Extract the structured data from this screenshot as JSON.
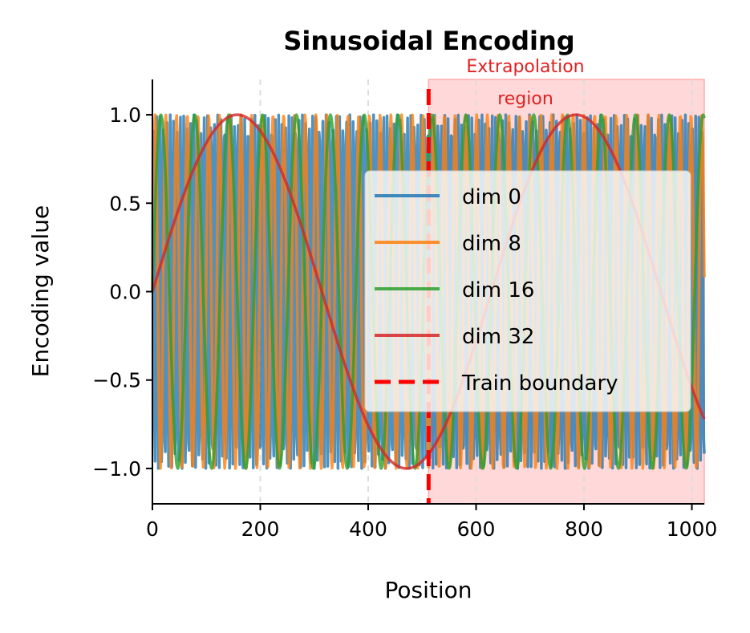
{
  "chart_data": {
    "type": "line",
    "title": "Sinusoidal Encoding",
    "xlabel": "Position",
    "ylabel": "Encoding value",
    "xlim": [
      0,
      1023
    ],
    "ylim": [
      -1.2,
      1.2
    ],
    "xticks": [
      0,
      200,
      400,
      600,
      800,
      1000
    ],
    "xtick_labels": [
      "0",
      "200",
      "400",
      "600",
      "800",
      "1000"
    ],
    "yticks": [
      1.0,
      0.5,
      0.0,
      -0.5,
      -1.0
    ],
    "ytick_labels": [
      "1.0",
      "0.5",
      "0.0",
      "−0.5",
      "−1.0"
    ],
    "grid": "x dashed",
    "x": {
      "start": 0,
      "end": 1023,
      "step": 1
    },
    "series": [
      {
        "name": "dim 0",
        "function": "sin",
        "angular_frequency": 1.0,
        "color": "#1f77b4"
      },
      {
        "name": "dim 8",
        "function": "sin",
        "angular_frequency": 0.31623,
        "color": "#ff7f0e"
      },
      {
        "name": "dim 16",
        "function": "sin",
        "angular_frequency": 0.1,
        "color": "#2ca02c"
      },
      {
        "name": "dim 32",
        "function": "sin",
        "angular_frequency": 0.01,
        "color": "#d62728"
      }
    ],
    "boundary": {
      "name": "Train boundary",
      "x": 512,
      "color": "#ff0000"
    },
    "region": {
      "label_line1": "Extrapolation",
      "label_line2": "region",
      "x_range": [
        512,
        1023
      ],
      "color": "#ffcccc",
      "label_color": "#e02020"
    },
    "legend": "center-right"
  }
}
